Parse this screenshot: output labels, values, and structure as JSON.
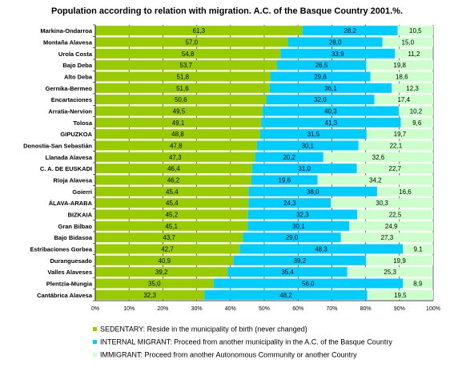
{
  "chart_data": {
    "type": "bar",
    "orientation": "horizontal",
    "stacked": true,
    "title": "Population according to relation with migration. A.C. of the Basque Country 2001.%.",
    "xlim": [
      0,
      100
    ],
    "x_ticks": [
      "0%",
      "10%",
      "20%",
      "30%",
      "40%",
      "50%",
      "60%",
      "70%",
      "80%",
      "90%",
      "100%"
    ],
    "grid": true,
    "legend_position": "bottom",
    "categories": [
      "Markina-Ondarroa",
      "Montaña Alavesa",
      "Urola Costa",
      "Bajo Deba",
      "Alto Deba",
      "Gernika-Bermeo",
      "Encartaciones",
      "Arratia-Nervion",
      "Tolosa",
      "GIPUZKOA",
      "Donostia-San Sebastián",
      "Llanada Alavesa",
      "C. A. DE EUSKADI",
      "Rioja Alavesa",
      "Goierri",
      "ÁLAVA-ARABA",
      "BIZKAIA",
      "Gran Bilbao",
      "Bajo Bidasoa",
      "Estribaciones Gorbea",
      "Duranguesado",
      "Valles Alaveses",
      "Plentzia-Mungia",
      "Cantábrica Alavesa"
    ],
    "series": [
      {
        "name": "SEDENTARY: Reside in the municipality of birth (never changed)",
        "color": "#99cc00",
        "values": [
          61.3,
          57.0,
          54.8,
          53.7,
          51.8,
          51.6,
          50.6,
          49.5,
          49.1,
          48.8,
          47.8,
          47.3,
          46.4,
          46.2,
          45.4,
          45.4,
          45.2,
          45.1,
          43.7,
          42.7,
          40.9,
          39.2,
          35.0,
          32.3
        ]
      },
      {
        "name": "INTERNAL MIGRANT: Proceed from another municipality in the A.C. of the Basque Country",
        "color": "#00ccff",
        "values": [
          28.2,
          28.0,
          33.9,
          26.5,
          29.6,
          36.1,
          32.0,
          40.3,
          41.3,
          31.5,
          30.1,
          20.2,
          31.0,
          19.6,
          38.0,
          24.3,
          32.3,
          30.1,
          29.0,
          48.3,
          39.2,
          35.4,
          56.0,
          48.2
        ]
      },
      {
        "name": "IMMIGRANT: Proceed from another Autonomous Community or another Country",
        "color": "#ccffcc",
        "values": [
          10.5,
          15.0,
          11.2,
          19.8,
          18.6,
          12.3,
          17.4,
          10.2,
          9.6,
          19.7,
          22.1,
          32.6,
          22.7,
          34.2,
          16.6,
          30.3,
          22.5,
          24.9,
          27.3,
          9.1,
          19.9,
          25.3,
          8.9,
          19.5
        ]
      }
    ],
    "value_labels": [
      [
        "61,3",
        "57,0",
        "54,8",
        "53,7",
        "51,8",
        "51,6",
        "50,6",
        "49,5",
        "49,1",
        "48,8",
        "47,8",
        "47,3",
        "46,4",
        "46,2",
        "45,4",
        "45,4",
        "45,2",
        "45,1",
        "43,7",
        "42,7",
        "40,9",
        "39,2",
        "35,0",
        "32,3"
      ],
      [
        "28,2",
        "28,0",
        "33,9",
        "26,5",
        "29,6",
        "36,1",
        "32,0",
        "40,3",
        "41,3",
        "31,5",
        "30,1",
        "20,2",
        "31,0",
        "19,6",
        "38,0",
        "24,3",
        "32,3",
        "30,1",
        "29,0",
        "48,3",
        "39,2",
        "35,4",
        "56,0",
        "48,2"
      ],
      [
        "10,5",
        "15,0",
        "11,2",
        "19,8",
        "18,6",
        "12,3",
        "17,4",
        "10,2",
        "9,6",
        "19,7",
        "22,1",
        "32,6",
        "22,7",
        "34,2",
        "16,6",
        "30,3",
        "22,5",
        "24,9",
        "27,3",
        "9,1",
        "19,9",
        "25,3",
        "8,9",
        "19,5"
      ]
    ]
  }
}
